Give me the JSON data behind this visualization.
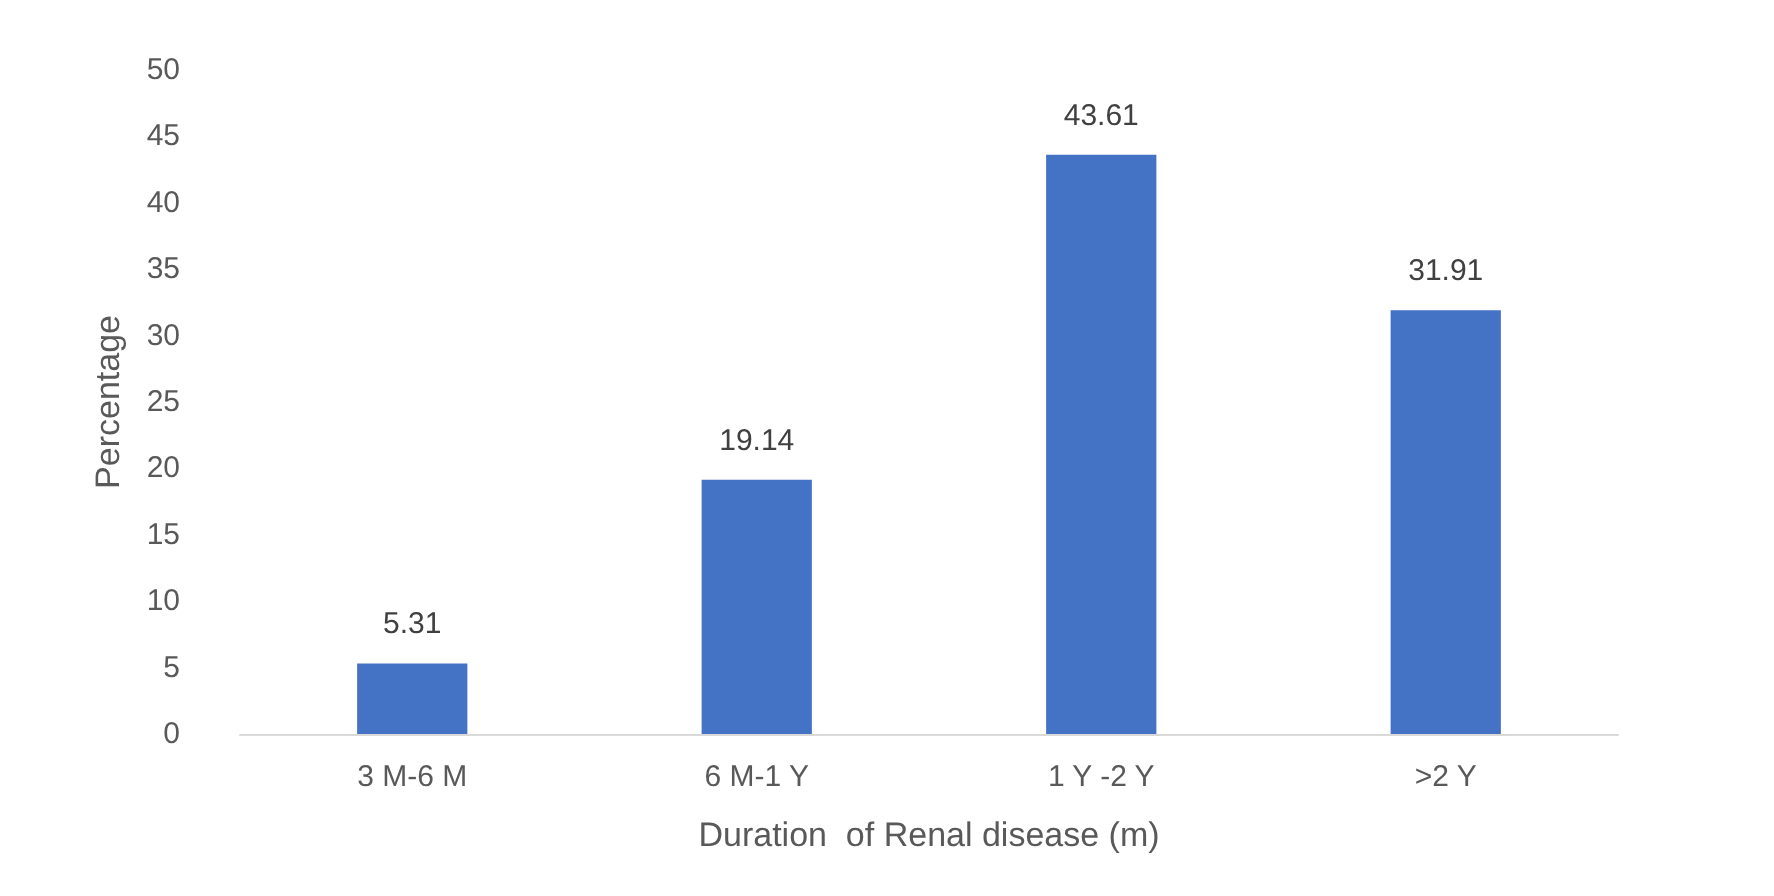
{
  "chart_data": {
    "type": "bar",
    "xlabel": "Duration  of Renal disease (m)",
    "ylabel": "Percentage",
    "categories": [
      "3 M-6 M",
      "6 M-1 Y",
      "1 Y -2 Y",
      ">2 Y"
    ],
    "values": [
      5.31,
      19.14,
      43.61,
      31.91
    ],
    "color": "#4472c4",
    "ylim": [
      0,
      50
    ],
    "yticks": [
      0,
      5,
      10,
      15,
      20,
      25,
      30,
      35,
      40,
      45,
      50
    ],
    "grid": false,
    "data_labels": true
  }
}
